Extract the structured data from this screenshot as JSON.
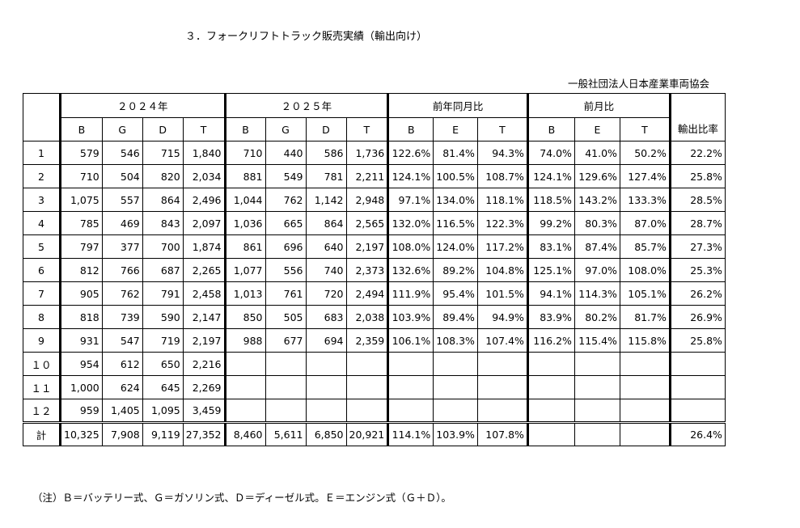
{
  "title": "３．フォークリフトトラック販売実績（輸出向け）",
  "organization": "一般社団法人日本産業車両協会",
  "groups": {
    "y2024": "２０２４年",
    "y2025": "２０２５年",
    "yoy": "前年同月比",
    "mom": "前月比",
    "export_ratio": "輸出比率"
  },
  "subheaders": {
    "y2024": [
      "B",
      "G",
      "D",
      "T"
    ],
    "y2025": [
      "B",
      "G",
      "D",
      "T"
    ],
    "yoy": [
      "B",
      "E",
      "T"
    ],
    "mom": [
      "B",
      "E",
      "T"
    ]
  },
  "rows": [
    {
      "label": "1",
      "y2024": [
        "579",
        "546",
        "715",
        "1,840"
      ],
      "y2025": [
        "710",
        "440",
        "586",
        "1,736"
      ],
      "yoy": [
        "122.6%",
        "81.4%",
        "94.3%"
      ],
      "mom": [
        "74.0%",
        "41.0%",
        "50.2%"
      ],
      "ratio": "22.2%"
    },
    {
      "label": "2",
      "y2024": [
        "710",
        "504",
        "820",
        "2,034"
      ],
      "y2025": [
        "881",
        "549",
        "781",
        "2,211"
      ],
      "yoy": [
        "124.1%",
        "100.5%",
        "108.7%"
      ],
      "mom": [
        "124.1%",
        "129.6%",
        "127.4%"
      ],
      "ratio": "25.8%"
    },
    {
      "label": "3",
      "y2024": [
        "1,075",
        "557",
        "864",
        "2,496"
      ],
      "y2025": [
        "1,044",
        "762",
        "1,142",
        "2,948"
      ],
      "yoy": [
        "97.1%",
        "134.0%",
        "118.1%"
      ],
      "mom": [
        "118.5%",
        "143.2%",
        "133.3%"
      ],
      "ratio": "28.5%"
    },
    {
      "label": "4",
      "y2024": [
        "785",
        "469",
        "843",
        "2,097"
      ],
      "y2025": [
        "1,036",
        "665",
        "864",
        "2,565"
      ],
      "yoy": [
        "132.0%",
        "116.5%",
        "122.3%"
      ],
      "mom": [
        "99.2%",
        "80.3%",
        "87.0%"
      ],
      "ratio": "28.7%"
    },
    {
      "label": "5",
      "y2024": [
        "797",
        "377",
        "700",
        "1,874"
      ],
      "y2025": [
        "861",
        "696",
        "640",
        "2,197"
      ],
      "yoy": [
        "108.0%",
        "124.0%",
        "117.2%"
      ],
      "mom": [
        "83.1%",
        "87.4%",
        "85.7%"
      ],
      "ratio": "27.3%"
    },
    {
      "label": "6",
      "y2024": [
        "812",
        "766",
        "687",
        "2,265"
      ],
      "y2025": [
        "1,077",
        "556",
        "740",
        "2,373"
      ],
      "yoy": [
        "132.6%",
        "89.2%",
        "104.8%"
      ],
      "mom": [
        "125.1%",
        "97.0%",
        "108.0%"
      ],
      "ratio": "25.3%"
    },
    {
      "label": "7",
      "y2024": [
        "905",
        "762",
        "791",
        "2,458"
      ],
      "y2025": [
        "1,013",
        "761",
        "720",
        "2,494"
      ],
      "yoy": [
        "111.9%",
        "95.4%",
        "101.5%"
      ],
      "mom": [
        "94.1%",
        "114.3%",
        "105.1%"
      ],
      "ratio": "26.2%"
    },
    {
      "label": "8",
      "y2024": [
        "818",
        "739",
        "590",
        "2,147"
      ],
      "y2025": [
        "850",
        "505",
        "683",
        "2,038"
      ],
      "yoy": [
        "103.9%",
        "89.4%",
        "94.9%"
      ],
      "mom": [
        "83.9%",
        "80.2%",
        "81.7%"
      ],
      "ratio": "26.9%"
    },
    {
      "label": "9",
      "y2024": [
        "931",
        "547",
        "719",
        "2,197"
      ],
      "y2025": [
        "988",
        "677",
        "694",
        "2,359"
      ],
      "yoy": [
        "106.1%",
        "108.3%",
        "107.4%"
      ],
      "mom": [
        "116.2%",
        "115.4%",
        "115.8%"
      ],
      "ratio": "25.8%"
    },
    {
      "label": "１０",
      "y2024": [
        "954",
        "612",
        "650",
        "2,216"
      ],
      "y2025": [
        "",
        "",
        "",
        ""
      ],
      "yoy": [
        "",
        "",
        ""
      ],
      "mom": [
        "",
        "",
        ""
      ],
      "ratio": ""
    },
    {
      "label": "１１",
      "y2024": [
        "1,000",
        "624",
        "645",
        "2,269"
      ],
      "y2025": [
        "",
        "",
        "",
        ""
      ],
      "yoy": [
        "",
        "",
        ""
      ],
      "mom": [
        "",
        "",
        ""
      ],
      "ratio": ""
    },
    {
      "label": "１２",
      "y2024": [
        "959",
        "1,405",
        "1,095",
        "3,459"
      ],
      "y2025": [
        "",
        "",
        "",
        ""
      ],
      "yoy": [
        "",
        "",
        ""
      ],
      "mom": [
        "",
        "",
        ""
      ],
      "ratio": ""
    }
  ],
  "total": {
    "label": "計",
    "y2024": [
      "10,325",
      "7,908",
      "9,119",
      "27,352"
    ],
    "y2025": [
      "8,460",
      "5,611",
      "6,850",
      "20,921"
    ],
    "yoy": [
      "114.1%",
      "103.9%",
      "107.8%"
    ],
    "mom": [
      "",
      "",
      ""
    ],
    "ratio": "26.4%"
  },
  "note": "（注）Ｂ＝バッテリー式、Ｇ＝ガソリン式、Ｄ＝ディーゼル式。Ｅ＝エンジン式（Ｇ＋Ｄ）。"
}
